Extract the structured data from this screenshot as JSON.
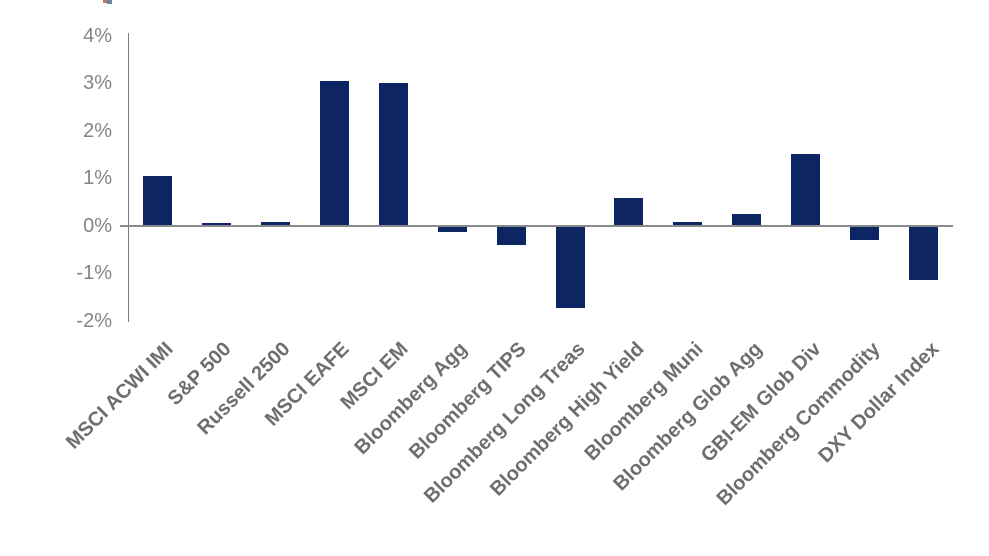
{
  "chart_data": {
    "type": "bar",
    "title": "",
    "xlabel": "",
    "ylabel": "",
    "unit": "%",
    "categories": [
      "MSCI ACWI IMI",
      "S&P 500",
      "Russell 2500",
      "MSCI EAFE",
      "MSCI EM",
      "Bloomberg Agg",
      "Bloomberg TIPS",
      "Bloomberg Long Treas",
      "Bloomberg High Yield",
      "Bloomberg Muni",
      "Bloomberg Glob Agg",
      "GBI-EM Glob Div",
      "Bloomberg Commodity",
      "DXY Dollar Index"
    ],
    "values": [
      1.05,
      0.05,
      0.08,
      3.05,
      3.0,
      -0.15,
      -0.42,
      -1.75,
      0.57,
      0.08,
      0.25,
      1.5,
      -0.32,
      -1.16
    ],
    "y_ticks": [
      {
        "label": "4%",
        "value": 4
      },
      {
        "label": "3%",
        "value": 3
      },
      {
        "label": "2%",
        "value": 2
      },
      {
        "label": "1%",
        "value": 1
      },
      {
        "label": "0%",
        "value": 0
      },
      {
        "label": "-1%",
        "value": -1
      },
      {
        "label": "-2%",
        "value": -2
      }
    ],
    "ylim": [
      -2.05,
      4.05
    ],
    "grid": "zero-line-only",
    "legend": "none",
    "x_label_rotation_deg": -45,
    "colors": {
      "bar": "#0d2563",
      "axis_line": "#7f7f7f",
      "zero_line": "#8a8a8a",
      "y_tick_text": "#848484",
      "x_tick_text": "#6e6e6e",
      "background": "#ffffff"
    }
  },
  "artifact_fragment": {
    "description": "tiny clipped fragment of text/graphic cut off at top edge",
    "colors": [
      "#c0784a",
      "#6b86a5"
    ]
  }
}
